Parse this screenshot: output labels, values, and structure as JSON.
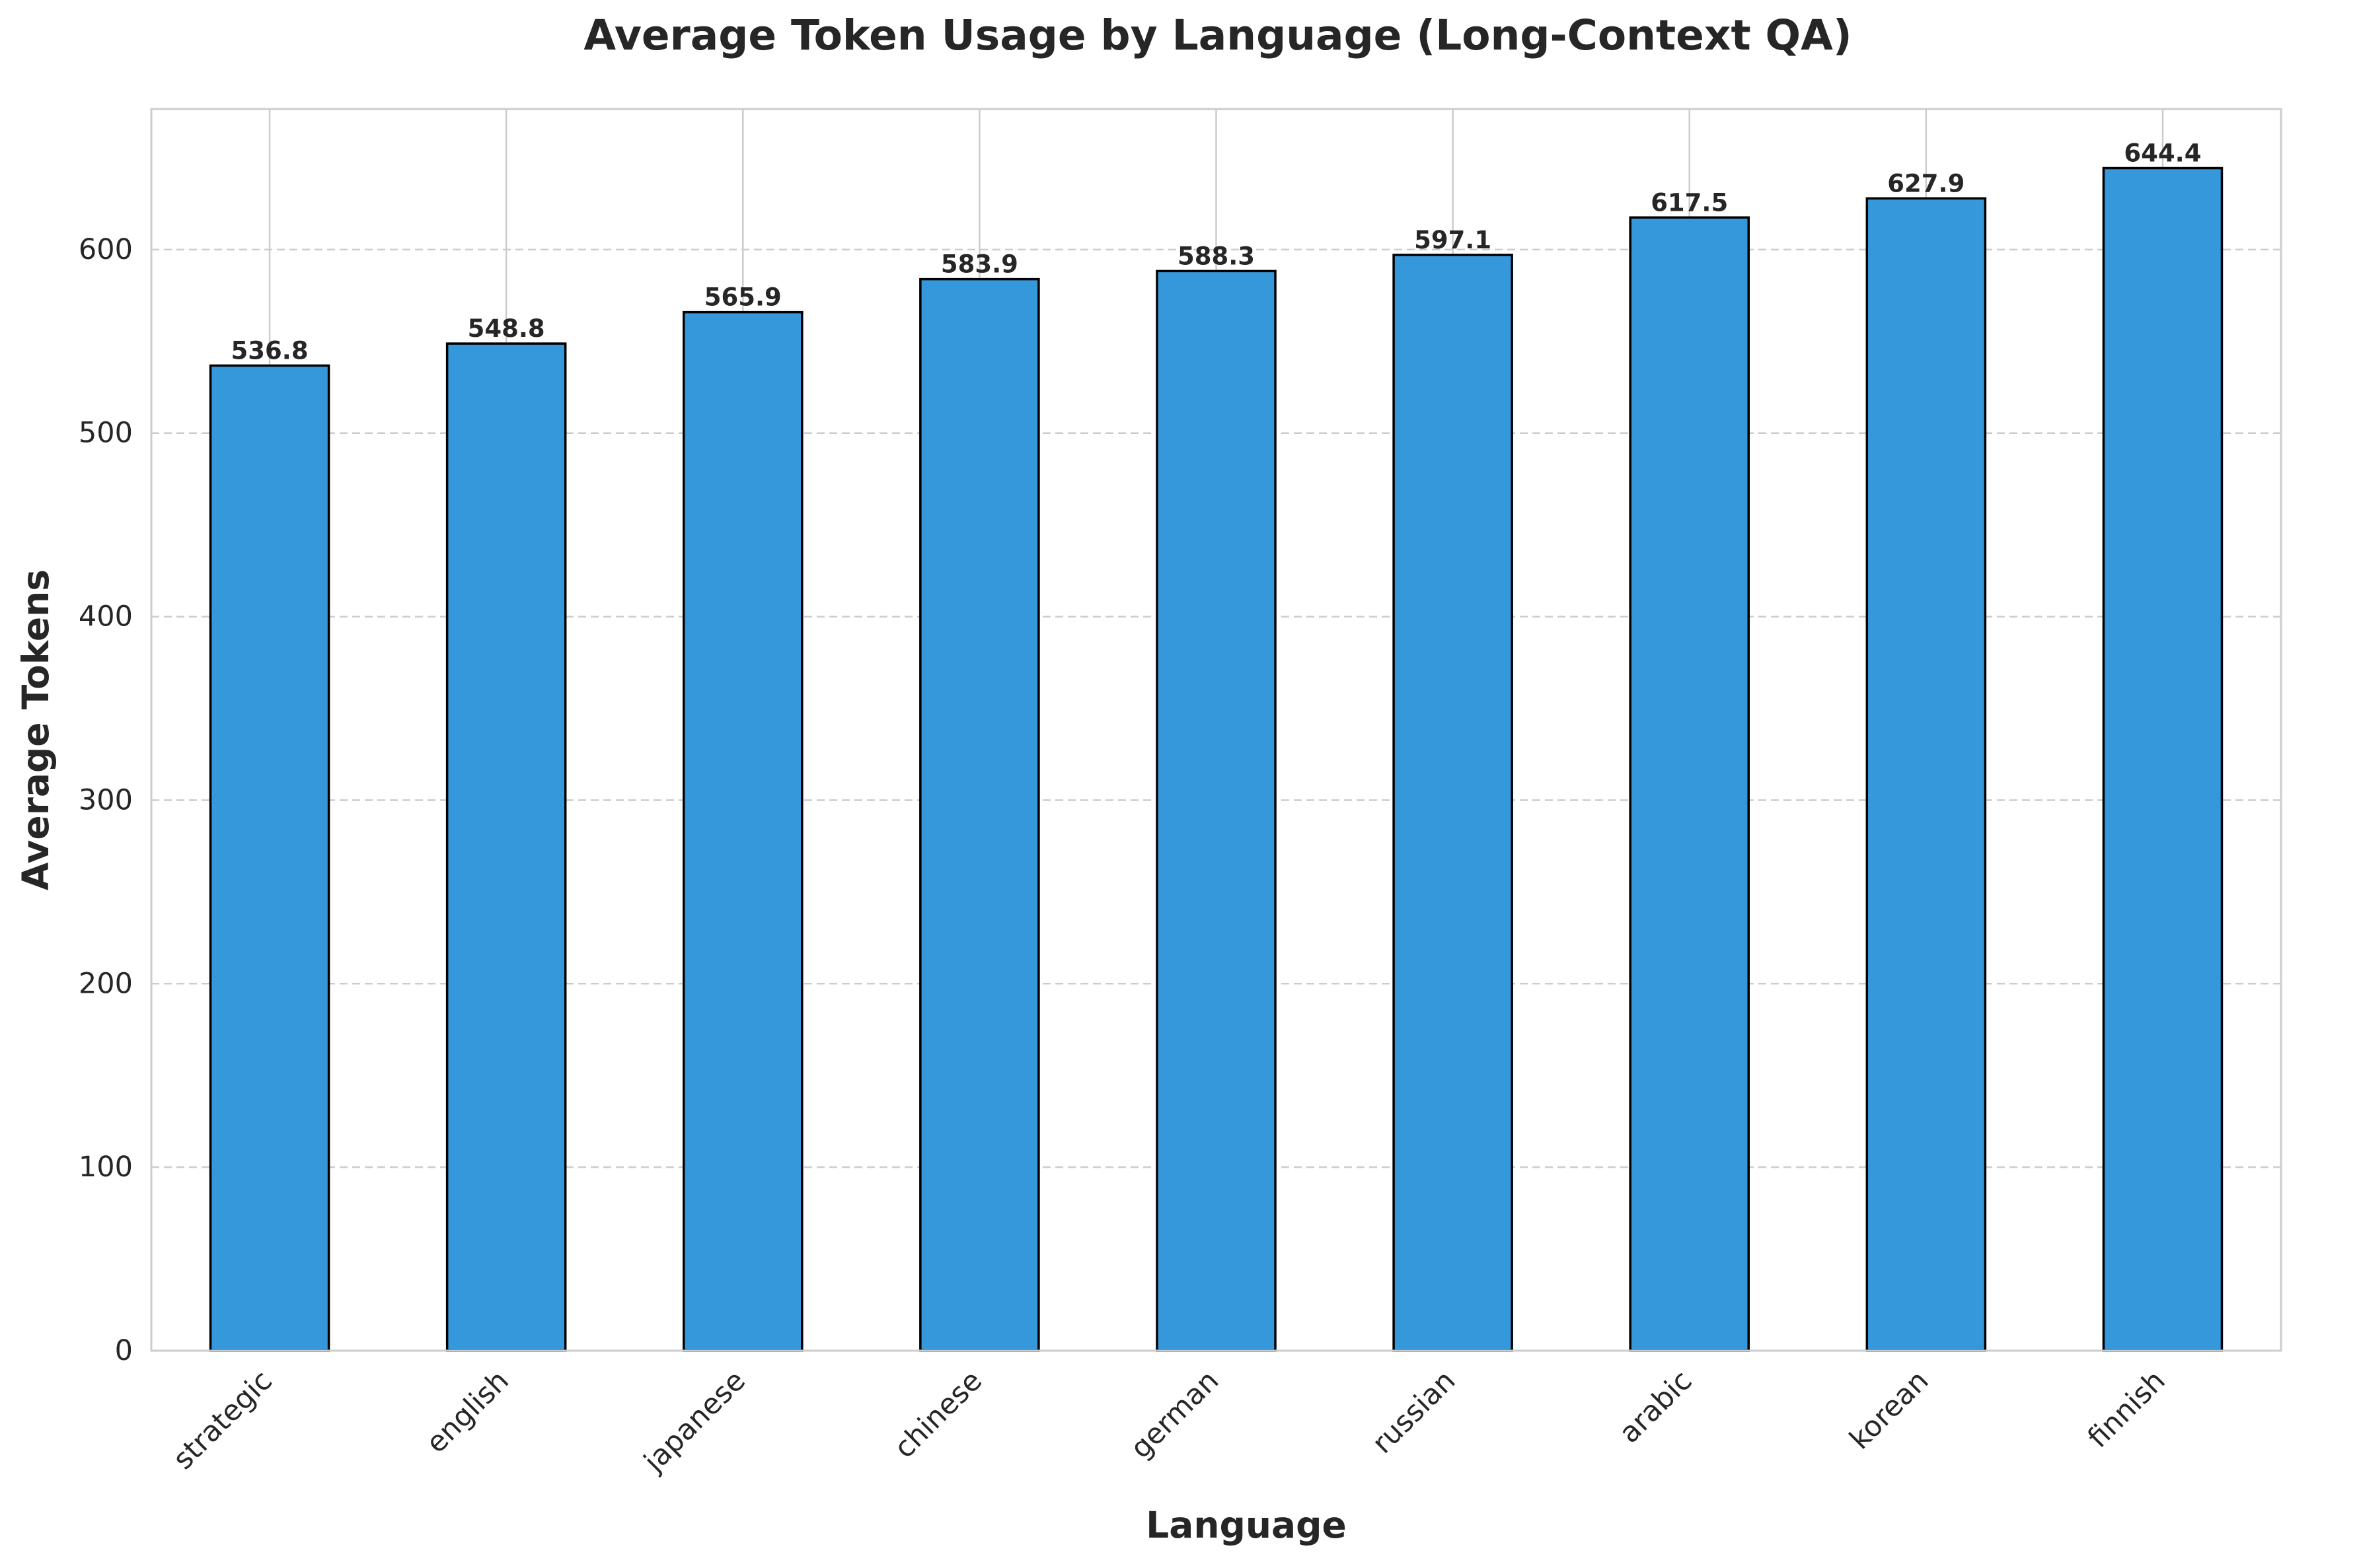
{
  "chart_data": {
    "type": "bar",
    "title": "Average Token Usage by Language (Long-Context QA)",
    "xlabel": "Language",
    "ylabel": "Average Tokens",
    "categories": [
      "strategic",
      "english",
      "japanese",
      "chinese",
      "german",
      "russian",
      "arabic",
      "korean",
      "finnish"
    ],
    "values": [
      536.8,
      548.8,
      565.9,
      583.9,
      588.3,
      597.1,
      617.5,
      627.9,
      644.4
    ],
    "value_labels": [
      "536.8",
      "548.8",
      "565.9",
      "583.9",
      "588.3",
      "597.1",
      "617.5",
      "627.9",
      "644.4"
    ],
    "ylim": [
      0,
      676.62
    ],
    "yticks": [
      0,
      100,
      200,
      300,
      400,
      500,
      600
    ],
    "ytick_labels": [
      "0",
      "100",
      "200",
      "300",
      "400",
      "500",
      "600"
    ],
    "grid": true,
    "bar_color": "#3498db",
    "edge_color": "#000000",
    "grid_color": "#cccccc"
  }
}
